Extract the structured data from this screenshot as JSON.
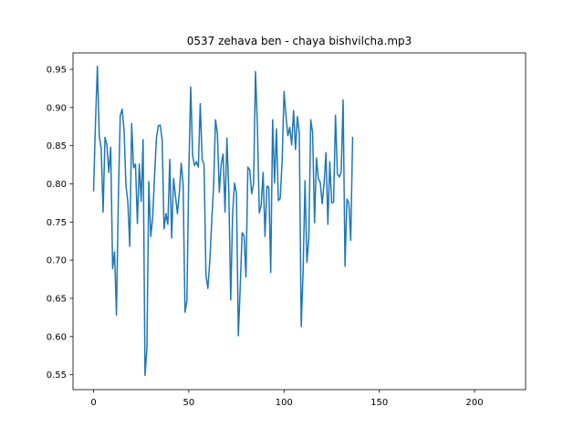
{
  "chart_data": {
    "type": "line",
    "title": "0537 zehava ben - chaya bishvilcha.mp3",
    "xlabel": "",
    "ylabel": "",
    "xlim": [
      -10.8,
      226.8
    ],
    "ylim": [
      0.5305,
      0.9715
    ],
    "xticks": [
      0,
      50,
      100,
      150,
      200
    ],
    "yticks": [
      0.55,
      0.6,
      0.65,
      0.7,
      0.75,
      0.8,
      0.85,
      0.9,
      0.95
    ],
    "ytick_labels": [
      "0.55",
      "0.60",
      "0.65",
      "0.70",
      "0.75",
      "0.80",
      "0.85",
      "0.90",
      "0.95"
    ],
    "grid": false,
    "line_color": "#1f77b4",
    "series": [
      {
        "values": [
          0.791,
          0.88,
          0.954,
          0.863,
          0.846,
          0.763,
          0.861,
          0.851,
          0.815,
          0.848,
          0.689,
          0.711,
          0.628,
          0.78,
          0.889,
          0.898,
          0.87,
          0.798,
          0.776,
          0.718,
          0.879,
          0.821,
          0.826,
          0.748,
          0.826,
          0.777,
          0.858,
          0.549,
          0.585,
          0.803,
          0.731,
          0.755,
          0.809,
          0.86,
          0.876,
          0.877,
          0.858,
          0.741,
          0.761,
          0.747,
          0.832,
          0.729,
          0.807,
          0.784,
          0.761,
          0.787,
          0.827,
          0.8,
          0.632,
          0.647,
          0.817,
          0.927,
          0.837,
          0.824,
          0.829,
          0.822,
          0.905,
          0.832,
          0.825,
          0.68,
          0.663,
          0.698,
          0.75,
          0.796,
          0.884,
          0.866,
          0.789,
          0.826,
          0.839,
          0.763,
          0.86,
          0.79,
          0.648,
          0.762,
          0.801,
          0.788,
          0.601,
          0.666,
          0.736,
          0.732,
          0.678,
          0.822,
          0.818,
          0.787,
          0.8,
          0.947,
          0.877,
          0.762,
          0.772,
          0.815,
          0.731,
          0.797,
          0.796,
          0.684,
          0.884,
          0.801,
          0.872,
          0.778,
          0.781,
          0.831,
          0.921,
          0.889,
          0.863,
          0.874,
          0.851,
          0.896,
          0.845,
          0.888,
          0.866,
          0.613,
          0.686,
          0.804,
          0.697,
          0.729,
          0.884,
          0.867,
          0.749,
          0.834,
          0.807,
          0.802,
          0.774,
          0.8,
          0.841,
          0.747,
          0.829,
          0.775,
          0.776,
          0.89,
          0.813,
          0.809,
          0.816,
          0.91,
          0.692,
          0.78,
          0.775,
          0.726,
          0.861
        ]
      }
    ]
  }
}
